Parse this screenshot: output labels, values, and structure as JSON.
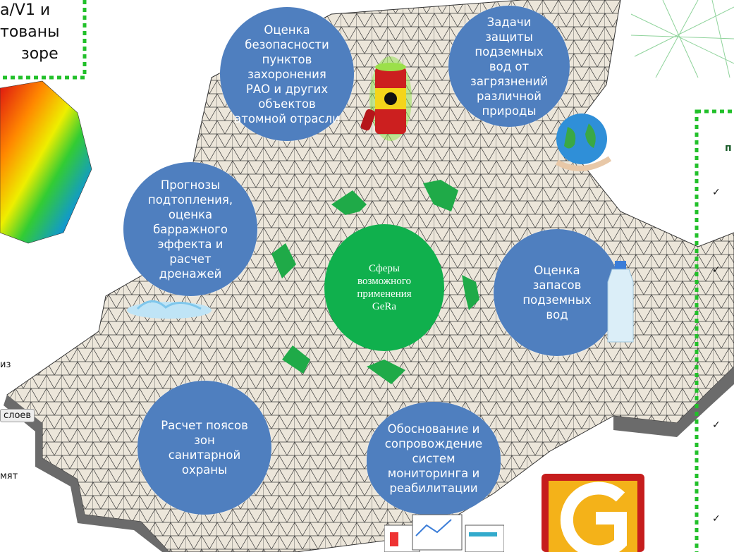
{
  "center": {
    "text": "Сферы\nвозможного\nприменения\nGeRa"
  },
  "bubbles": [
    {
      "id": "safety",
      "text": "Оценка\nбезопасности\nпунктов\nзахоронения\nРАО и других\nобъектов\nатомной отрасли"
    },
    {
      "id": "groundwater",
      "text": "Задачи\nзащиты\nподземных\nвод от\nзагрязнений\nразличной\nприроды"
    },
    {
      "id": "flooding",
      "text": "Прогнозы\nподтопления,\nоценка\nбарражного\nэффекта и\nрасчет\nдренажей"
    },
    {
      "id": "reserves",
      "text": "Оценка\nзапасов\nподземных\nвод"
    },
    {
      "id": "sanitary",
      "text": "Расчет поясов\nзон\nсанитарной\nохраны"
    },
    {
      "id": "monitoring",
      "text": "Обоснование и\nсопровождение\nсистем\nмониторинга и\nреабилитации"
    }
  ],
  "fragments": {
    "top_left_line1": "a/V1 и",
    "top_left_line2": "тованы",
    "top_left_line3": "зоре",
    "left_iz": "из",
    "left_sloev": "слоев",
    "left_myat": "мят",
    "right_p": "п"
  },
  "checkmark": "✓",
  "colors": {
    "bubble": "#4f7fbf",
    "center": "#10b04d",
    "arrow": "#1faa48",
    "frame": "#22c02a"
  }
}
